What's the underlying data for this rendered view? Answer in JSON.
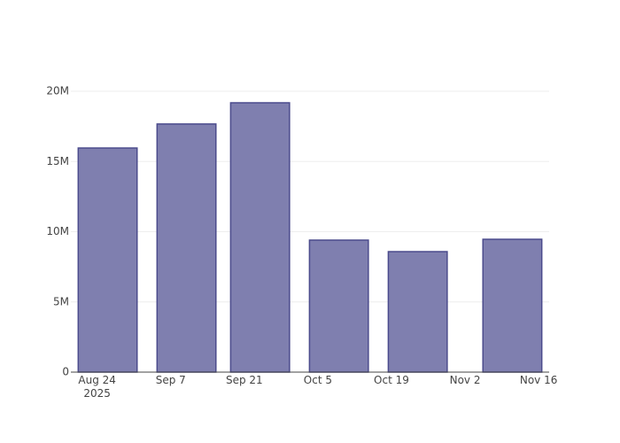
{
  "chart_data": {
    "type": "bar",
    "x": [
      "2025-08-26",
      "2025-09-10",
      "2025-09-24",
      "2025-10-09",
      "2025-10-24",
      "2025-11-11"
    ],
    "values": [
      15960000,
      17670000,
      19180000,
      9400000,
      8580000,
      9460000
    ],
    "color": "#7f7faf",
    "edge_color": "#4b4b8c",
    "xlim": [
      "2025-08-19",
      "2025-11-18"
    ],
    "xticks": [
      {
        "value": "2025-08-24",
        "label": "Aug 24\n2025"
      },
      {
        "value": "2025-09-07",
        "label": "Sep 7"
      },
      {
        "value": "2025-09-21",
        "label": "Sep 21"
      },
      {
        "value": "2025-10-05",
        "label": "Oct 5"
      },
      {
        "value": "2025-10-19",
        "label": "Oct 19"
      },
      {
        "value": "2025-11-02",
        "label": "Nov 2"
      },
      {
        "value": "2025-11-16",
        "label": "Nov 16"
      }
    ],
    "ylim": [
      0,
      20190000
    ],
    "yticks": [
      0,
      {
        "value": 5000000,
        "label": "5M"
      },
      {
        "value": 10000000,
        "label": "10M"
      },
      {
        "value": 15000000,
        "label": "15M"
      },
      {
        "value": 20000000,
        "label": "20M"
      }
    ],
    "grid": true
  }
}
